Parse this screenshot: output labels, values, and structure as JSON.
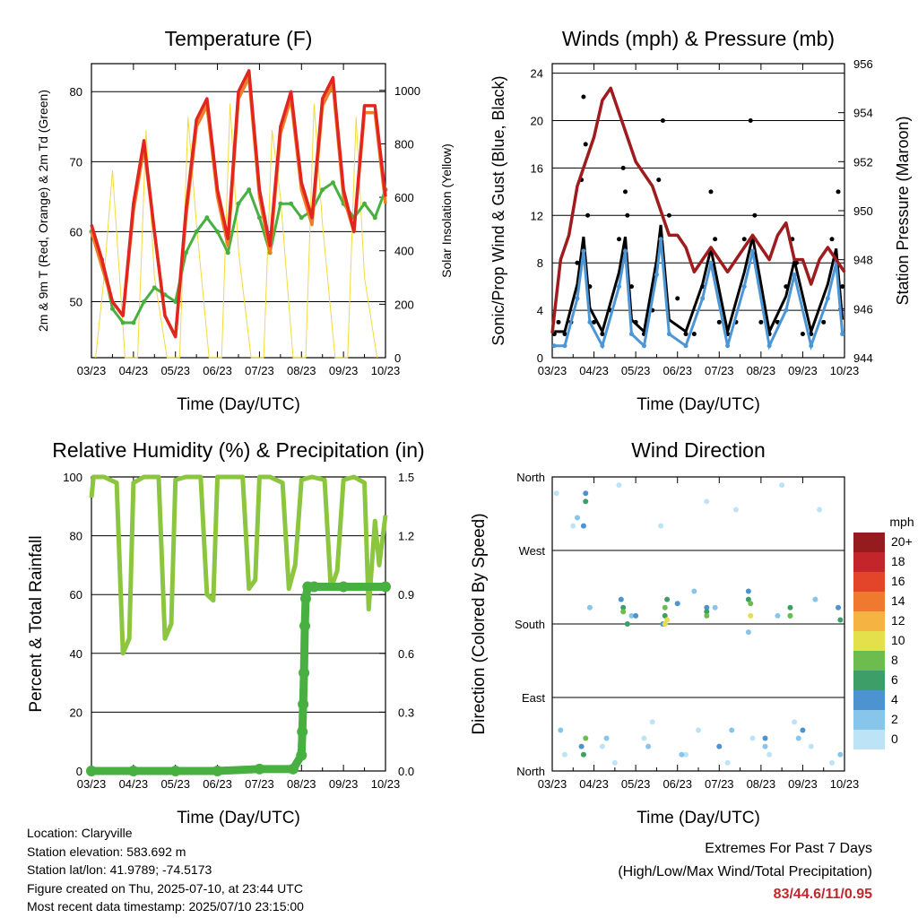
{
  "chart_data": [
    {
      "type": "line",
      "title": "Temperature (F)",
      "xlabel": "Time (Day/UTC)",
      "ylabel": "2m & 9m T (Red, Orange) & 2m Td (Green)",
      "ylabel_right": "Solar Insolation (Yellow)",
      "x_ticks": [
        "03/23",
        "04/23",
        "05/23",
        "06/23",
        "07/23",
        "08/23",
        "09/23",
        "10/23"
      ],
      "ylim": [
        42,
        84
      ],
      "y_ticks": [
        50,
        60,
        70,
        80
      ],
      "ylim_right": [
        0,
        1100
      ],
      "y_ticks_right": [
        0,
        200,
        400,
        600,
        800,
        1000
      ],
      "grid": "horizontal",
      "series": [
        {
          "color": "#e0261f",
          "x": [
            0,
            0.25,
            0.5,
            0.75,
            1.0,
            1.25,
            1.5,
            1.75,
            2.0,
            2.25,
            2.5,
            2.75,
            3.0,
            3.25,
            3.5,
            3.75,
            4.0,
            4.25,
            4.5,
            4.75,
            5.0,
            5.25,
            5.5,
            5.75,
            6.0,
            6.25,
            6.5,
            6.75,
            7.0
          ],
          "values": [
            61,
            56,
            50,
            48,
            64,
            73,
            60,
            48,
            45,
            63,
            76,
            79,
            66,
            59,
            80,
            83,
            66,
            58,
            75,
            80,
            67,
            62,
            79,
            82,
            66,
            60,
            78,
            78,
            65
          ]
        },
        {
          "color": "#f07e26",
          "x": [
            0,
            0.25,
            0.5,
            0.75,
            1.0,
            1.25,
            1.5,
            1.75,
            2.0,
            2.25,
            2.5,
            2.75,
            3.0,
            3.25,
            3.5,
            3.75,
            4.0,
            4.25,
            4.5,
            4.75,
            5.0,
            5.25,
            5.5,
            5.75,
            6.0,
            6.25,
            6.5,
            6.75,
            7.0
          ],
          "values": [
            60,
            55,
            50,
            48,
            63,
            72,
            60,
            48,
            45,
            62,
            75,
            78,
            65,
            58,
            79,
            82,
            65,
            57,
            74,
            79,
            66,
            61,
            78,
            81,
            65,
            60,
            77,
            77,
            64
          ]
        },
        {
          "color": "#48b041",
          "x": [
            0,
            0.25,
            0.5,
            0.75,
            1.0,
            1.25,
            1.5,
            1.75,
            2.0,
            2.25,
            2.5,
            2.75,
            3.0,
            3.25,
            3.5,
            3.75,
            4.0,
            4.25,
            4.5,
            4.75,
            5.0,
            5.25,
            5.5,
            5.75,
            6.0,
            6.25,
            6.5,
            6.75,
            7.0
          ],
          "values": [
            60,
            56,
            49,
            47,
            47,
            50,
            52,
            51,
            50,
            57,
            60,
            62,
            60,
            57,
            64,
            66,
            62,
            57,
            64,
            64,
            62,
            63,
            66,
            67,
            64,
            62,
            64,
            62,
            66
          ]
        },
        {
          "color": "#f3da3c",
          "axis": "right",
          "x": [
            0.1,
            0.3,
            0.5,
            0.8,
            1.1,
            1.3,
            1.5,
            1.8,
            2.1,
            2.3,
            2.5,
            2.8,
            3.1,
            3.3,
            3.5,
            3.8,
            4.1,
            4.3,
            4.5,
            4.8,
            5.1,
            5.3,
            5.5,
            5.8,
            6.1,
            6.3,
            6.5,
            6.8
          ],
          "values": [
            0,
            300,
            700,
            0,
            0,
            850,
            300,
            0,
            0,
            900,
            500,
            0,
            0,
            950,
            400,
            0,
            0,
            850,
            600,
            0,
            0,
            950,
            500,
            0,
            0,
            900,
            300,
            0
          ]
        }
      ]
    },
    {
      "type": "scatter",
      "title": "Winds (mph) & Pressure (mb)",
      "xlabel": "Time (Day/UTC)",
      "ylabel": "Sonic/Prop Wind & Gust (Blue, Black)",
      "ylabel_right": "Station Pressure (Maroon)",
      "x_ticks": [
        "03/23",
        "04/23",
        "05/23",
        "06/23",
        "07/23",
        "08/23",
        "09/23",
        "10/23"
      ],
      "ylim": [
        0,
        24.8
      ],
      "y_ticks": [
        0,
        4,
        8,
        12,
        16,
        20,
        24
      ],
      "ylim_right": [
        944,
        956
      ],
      "y_ticks_right": [
        944,
        946,
        948,
        950,
        952,
        954,
        956
      ],
      "grid": "horizontal",
      "series": [
        {
          "color": "#000000",
          "x": [
            0.05,
            0.15,
            0.3,
            0.45,
            0.6,
            0.7,
            0.75,
            0.8,
            0.85,
            0.9,
            1.0,
            1.2,
            1.4,
            1.6,
            1.7,
            1.75,
            1.8,
            1.9,
            2.0,
            2.2,
            2.4,
            2.55,
            2.65,
            2.8,
            3.0,
            3.2,
            3.4,
            3.6,
            3.8,
            3.9,
            4.0,
            4.2,
            4.4,
            4.6,
            4.75,
            4.85,
            5.0,
            5.2,
            5.4,
            5.6,
            5.75,
            5.85,
            6.0,
            6.2,
            6.5,
            6.7,
            6.85,
            6.95
          ],
          "values": [
            2,
            3,
            2,
            3,
            8,
            15,
            22,
            18,
            12,
            6,
            3,
            2,
            4,
            10,
            16,
            14,
            12,
            6,
            3,
            2,
            4,
            15,
            20,
            12,
            5,
            2,
            2,
            6,
            14,
            10,
            3,
            2,
            3,
            10,
            20,
            12,
            3,
            2,
            3,
            6,
            10,
            8,
            2,
            2,
            3,
            10,
            14,
            6
          ]
        },
        {
          "color": "#4c96d6",
          "x": [
            0.05,
            0.3,
            0.6,
            0.75,
            0.9,
            1.2,
            1.6,
            1.75,
            1.9,
            2.2,
            2.5,
            2.6,
            2.8,
            3.2,
            3.6,
            3.8,
            4.2,
            4.6,
            4.8,
            5.2,
            5.6,
            5.8,
            6.2,
            6.6,
            6.8,
            6.95
          ],
          "values": [
            1,
            1,
            5,
            9,
            3,
            1,
            6,
            9,
            2,
            1,
            7,
            10,
            2,
            1,
            5,
            8,
            1,
            6,
            9,
            1,
            4,
            7,
            1,
            5,
            8,
            2
          ]
        },
        {
          "color": "#9e1b1e",
          "axis": "right",
          "x": [
            0,
            0.2,
            0.4,
            0.6,
            0.8,
            1.0,
            1.2,
            1.4,
            1.6,
            1.8,
            2.0,
            2.2,
            2.4,
            2.6,
            2.8,
            3.0,
            3.2,
            3.4,
            3.6,
            3.8,
            4.0,
            4.2,
            4.4,
            4.6,
            4.8,
            5.0,
            5.2,
            5.4,
            5.6,
            5.8,
            6.0,
            6.2,
            6.4,
            6.6,
            6.8,
            7.0
          ],
          "values": [
            945,
            948,
            949,
            951,
            952,
            953,
            954.5,
            955,
            954,
            953,
            952,
            951.5,
            951,
            950,
            949,
            949,
            948.5,
            947.5,
            948,
            948.5,
            948,
            947.5,
            948,
            948.5,
            949,
            948.5,
            948,
            949,
            949.5,
            948,
            948,
            947,
            948,
            948.5,
            948,
            947.5
          ]
        }
      ]
    },
    {
      "type": "scatter",
      "title": "Relative Humidity (%) & Precipitation (in)",
      "xlabel": "Time (Day/UTC)",
      "ylabel": "Percent & Total Rainfall",
      "x_ticks": [
        "03/23",
        "04/23",
        "05/23",
        "06/23",
        "07/23",
        "08/23",
        "09/23",
        "10/23"
      ],
      "ylim": [
        0,
        100
      ],
      "y_ticks": [
        0,
        20,
        40,
        60,
        80,
        100
      ],
      "ylim_right": [
        0,
        1.5
      ],
      "y_ticks_right": [
        "0.0",
        "0.3",
        "0.6",
        "0.9",
        "1.2",
        "1.5"
      ],
      "grid": "horizontal",
      "series": [
        {
          "color": "#8cc63f",
          "x": [
            0,
            0.05,
            0.3,
            0.6,
            0.75,
            0.9,
            1.0,
            1.25,
            1.6,
            1.75,
            1.9,
            2.0,
            2.25,
            2.6,
            2.75,
            2.9,
            3.0,
            3.25,
            3.6,
            3.75,
            3.9,
            4.0,
            4.25,
            4.55,
            4.7,
            4.85,
            5.0,
            5.25,
            5.55,
            5.7,
            5.85,
            6.0,
            6.25,
            6.5,
            6.6,
            6.75,
            6.85,
            7.0
          ],
          "values": [
            93,
            100,
            100,
            98,
            40,
            45,
            98,
            100,
            100,
            45,
            50,
            99,
            100,
            100,
            60,
            58,
            100,
            100,
            100,
            62,
            65,
            100,
            100,
            98,
            62,
            70,
            99,
            100,
            99,
            62,
            68,
            99,
            100,
            98,
            55,
            85,
            70,
            87
          ]
        },
        {
          "color": "#48b041",
          "axis": "right",
          "x": [
            0,
            1,
            2,
            3,
            4,
            4.8,
            5.0,
            5.02,
            5.04,
            5.06,
            5.08,
            5.1,
            5.15,
            5.3,
            6,
            7
          ],
          "values": [
            0,
            0,
            0,
            0,
            0.01,
            0.01,
            0.08,
            0.2,
            0.34,
            0.5,
            0.74,
            0.88,
            0.94,
            0.94,
            0.94,
            0.94
          ]
        }
      ]
    },
    {
      "type": "scatter",
      "title": "Wind Direction",
      "xlabel": "Time (Day/UTC)",
      "ylabel": "Direction (Colored By Speed)",
      "x_ticks": [
        "03/23",
        "04/23",
        "05/23",
        "06/23",
        "07/23",
        "08/23",
        "09/23",
        "10/23"
      ],
      "y_ticks": [
        "North",
        "East",
        "South",
        "West",
        "North"
      ],
      "ylim": [
        0,
        360
      ],
      "grid": "horizontal",
      "legend_title": "mph",
      "legend_labels": [
        "0",
        "2",
        "4",
        "6",
        "8",
        "10",
        "12",
        "14",
        "16",
        "18",
        "20+"
      ],
      "legend_colors": [
        "#bde4f6",
        "#88c5ea",
        "#4c93d0",
        "#3d9f67",
        "#6dbd4e",
        "#e3e04c",
        "#f5b342",
        "#ef7a2f",
        "#e2452a",
        "#c2262a",
        "#951b1f"
      ],
      "series": [
        {
          "name": "0",
          "color": "#bde4f6",
          "x": [
            0.1,
            0.3,
            0.5,
            1.2,
            1.5,
            1.6,
            2.2,
            2.4,
            2.6,
            3.2,
            3.5,
            3.7,
            4.2,
            4.4,
            4.8,
            5.2,
            5.5,
            5.8,
            6.2,
            6.4,
            6.7
          ],
          "values": [
            340,
            20,
            300,
            30,
            10,
            350,
            40,
            60,
            300,
            20,
            50,
            330,
            10,
            320,
            40,
            20,
            350,
            60,
            30,
            320,
            10
          ]
        },
        {
          "name": "2",
          "color": "#88c5ea",
          "x": [
            0.2,
            0.6,
            0.9,
            1.3,
            1.9,
            2.3,
            2.7,
            3.1,
            3.4,
            3.9,
            4.3,
            4.7,
            5.1,
            5.4,
            5.9,
            6.3,
            6.9
          ],
          "values": [
            50,
            310,
            200,
            40,
            190,
            30,
            180,
            20,
            220,
            200,
            50,
            170,
            30,
            190,
            40,
            210,
            20
          ]
        },
        {
          "name": "4",
          "color": "#4c93d0",
          "x": [
            0.7,
            0.8,
            0.75,
            1.65,
            2.0,
            2.65,
            3.0,
            3.7,
            4.0,
            4.7,
            5.1,
            5.7,
            6.0,
            6.85
          ],
          "values": [
            30,
            340,
            300,
            210,
            190,
            180,
            205,
            200,
            30,
            220,
            40,
            190,
            50,
            200
          ]
        },
        {
          "name": "6",
          "color": "#3d9f67",
          "x": [
            0.75,
            0.8,
            1.7,
            1.8,
            2.7,
            2.75,
            3.7,
            4.7,
            5.7,
            6.9
          ],
          "values": [
            20,
            330,
            200,
            180,
            190,
            210,
            195,
            210,
            200,
            185
          ]
        },
        {
          "name": "8",
          "color": "#6dbd4e",
          "x": [
            0.8,
            1.7,
            2.7,
            3.7,
            4.75,
            5.7
          ],
          "values": [
            40,
            195,
            200,
            190,
            205,
            190
          ]
        },
        {
          "name": "10",
          "color": "#e3e04c",
          "x": [
            2.7,
            2.75,
            4.75
          ],
          "values": [
            180,
            185,
            190
          ]
        }
      ]
    }
  ],
  "info": {
    "location": "Location: Claryville",
    "elevation": "Station elevation: 583.692 m",
    "latlon": "Station lat/lon: 41.9789; -74.5173",
    "created": "Figure created on Thu, 2025-07-10, at 23:44 UTC",
    "recent": "Most recent data timestamp: 2025/07/10 23:15:00"
  },
  "extremes": {
    "title": "Extremes For Past 7 Days",
    "subtitle": "(High/Low/Max Wind/Total Precipitation)",
    "values": "83/44.6/11/0.95"
  }
}
